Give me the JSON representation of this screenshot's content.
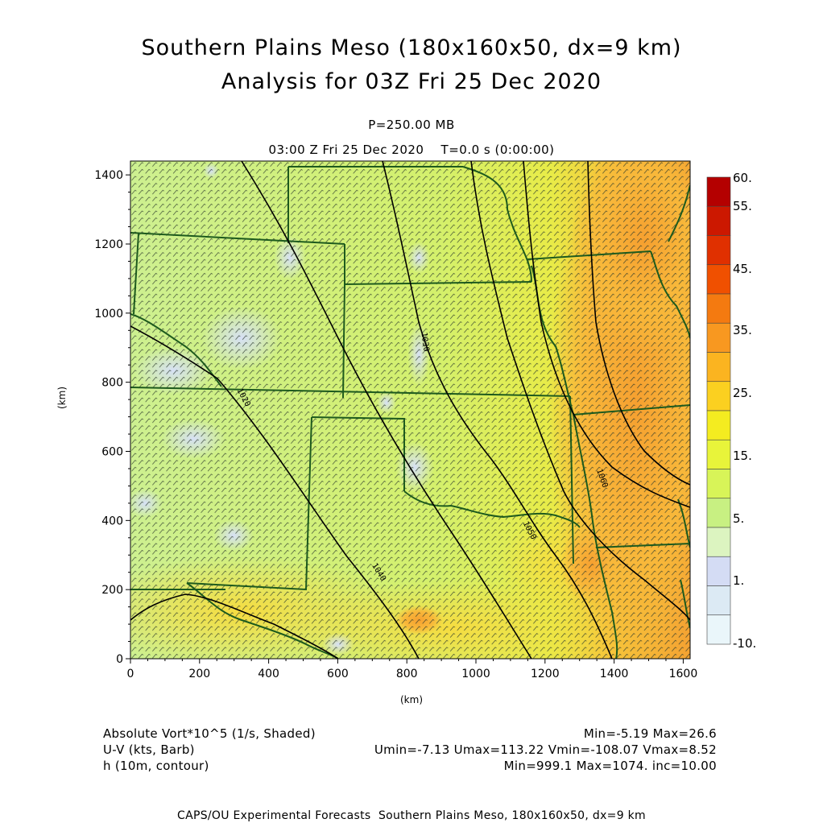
{
  "header": {
    "title_line1": "Southern Plains Meso (180x160x50, dx=9 km)",
    "title_line2": "Analysis for 03Z Fri 25 Dec 2020",
    "level": "P=250.00 MB",
    "valid_time": "03:00 Z Fri 25 Dec 2020    T=0.0 s (0:00:00)"
  },
  "axes": {
    "x_unit": "(km)",
    "y_unit": "(km)",
    "x_ticks": [
      "0",
      "200",
      "400",
      "600",
      "800",
      "1000",
      "1200",
      "1400",
      "1600"
    ],
    "y_ticks": [
      "0",
      "200",
      "400",
      "600",
      "800",
      "1000",
      "1200",
      "1400"
    ]
  },
  "colorbar": {
    "labels": [
      "60.",
      "55.",
      "45.",
      "35.",
      "25.",
      "15.",
      "5.",
      "1.",
      "-10."
    ],
    "colors_top_to_bottom": [
      "#b40000",
      "#cc1800",
      "#e03000",
      "#f05000",
      "#f47a10",
      "#f89820",
      "#fbb420",
      "#fbd020",
      "#f4ec20",
      "#e8f43a",
      "#d8f458",
      "#c8f082",
      "#dcf4c0",
      "#d4dcf4",
      "#dceaf4",
      "#eaf6fa"
    ]
  },
  "chart_data": {
    "type": "heatmap",
    "title": "Southern Plains Meso (180x160x50, dx=9 km)",
    "subtitle": "Analysis for 03Z Fri 25 Dec 2020",
    "xlabel": "(km)",
    "ylabel": "(km)",
    "xlim": [
      0,
      1620
    ],
    "ylim": [
      0,
      1440
    ],
    "fields": [
      {
        "name": "Absolute Vort*10^5 (1/s, Shaded)",
        "min": -5.19,
        "max": 26.6
      },
      {
        "name": "U-V (kts, Barb)",
        "umin": -7.13,
        "umax": 113.22,
        "vmin": -108.07,
        "vmax": 8.52
      },
      {
        "name": "h (10m, contour)",
        "min": 999.1,
        "max": 1074.0,
        "inc": 10.0
      }
    ],
    "contour_labels": [
      "1020",
      "1030",
      "1040",
      "1050",
      "1060"
    ]
  },
  "info": {
    "row1_left": "Absolute Vort*10^5 (1/s, Shaded)",
    "row1_right": "Min=-5.19 Max=26.6",
    "row2_left": "U-V (kts, Barb)",
    "row2_right": "Umin=-7.13 Umax=113.22 Vmin=-108.07 Vmax=8.52",
    "row3_left": "h (10m, contour)",
    "row3_right": "Min=999.1 Max=1074. inc=10.00"
  },
  "footer": "CAPS/OU Experimental Forecasts  Southern Plains Meso, 180x160x50, dx=9 km"
}
